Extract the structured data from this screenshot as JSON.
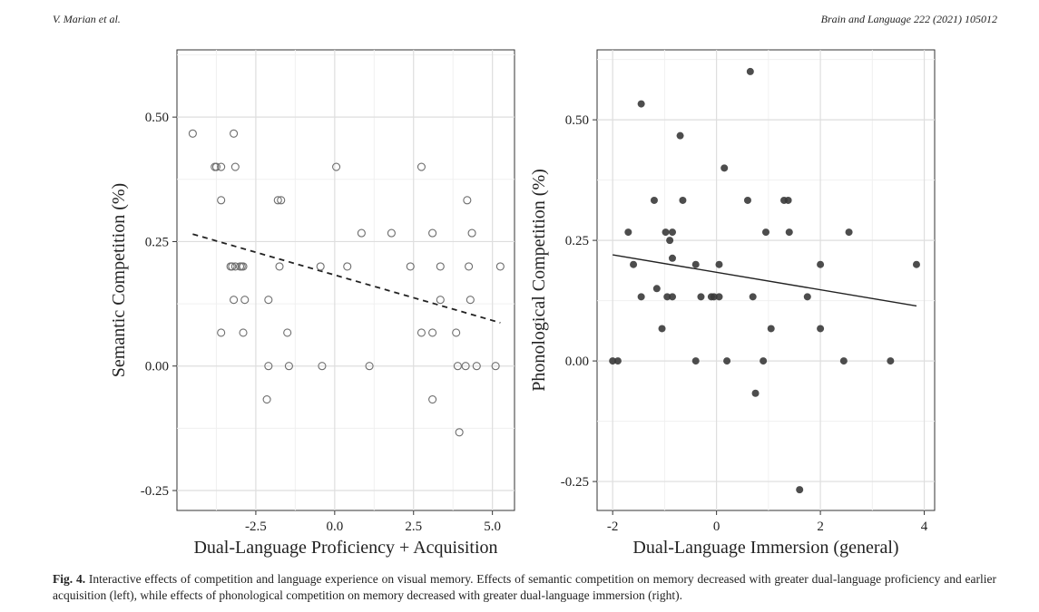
{
  "header": {
    "left": "V. Marian et al.",
    "right": "Brain and Language 222 (2021) 105012"
  },
  "caption": {
    "label": "Fig. 4.",
    "text": "Interactive effects of competition and language experience on visual memory. Effects of semantic competition on memory decreased with greater dual-language proficiency and earlier acquisition (left), while effects of phonological competition on memory decreased with greater dual-language immersion (right)."
  },
  "chart_data": [
    {
      "type": "scatter",
      "title": "",
      "xlabel": "Dual-Language Proficiency + Acquisition",
      "ylabel": "Semantic Competition (%)",
      "xlim": [
        -5,
        5.7
      ],
      "ylim": [
        -0.29,
        0.635
      ],
      "xticks": [
        -2.5,
        0.0,
        2.5,
        5.0
      ],
      "xtick_labels": [
        "-2.5",
        "0.0",
        "2.5",
        "5.0"
      ],
      "yticks": [
        -0.25,
        0.0,
        0.25,
        0.5
      ],
      "ytick_labels": [
        "-0.25",
        "0.00",
        "0.25",
        "0.50"
      ],
      "grid": true,
      "marker": "open-circle",
      "marker_color": "#6e6e6e",
      "points": [
        {
          "x": -4.5,
          "y": 0.467
        },
        {
          "x": -3.2,
          "y": 0.467
        },
        {
          "x": -3.8,
          "y": 0.4
        },
        {
          "x": -3.75,
          "y": 0.4
        },
        {
          "x": -3.6,
          "y": 0.4
        },
        {
          "x": -3.15,
          "y": 0.4
        },
        {
          "x": 0.05,
          "y": 0.4
        },
        {
          "x": 2.75,
          "y": 0.4
        },
        {
          "x": -3.6,
          "y": 0.333
        },
        {
          "x": -1.8,
          "y": 0.333
        },
        {
          "x": -1.7,
          "y": 0.333
        },
        {
          "x": 4.2,
          "y": 0.333
        },
        {
          "x": 0.85,
          "y": 0.267
        },
        {
          "x": 1.8,
          "y": 0.267
        },
        {
          "x": 3.1,
          "y": 0.267
        },
        {
          "x": 4.35,
          "y": 0.267
        },
        {
          "x": -3.3,
          "y": 0.2
        },
        {
          "x": -3.25,
          "y": 0.2
        },
        {
          "x": -3.15,
          "y": 0.2
        },
        {
          "x": -3.0,
          "y": 0.2
        },
        {
          "x": -2.95,
          "y": 0.2
        },
        {
          "x": -2.9,
          "y": 0.2
        },
        {
          "x": -1.75,
          "y": 0.2
        },
        {
          "x": -0.45,
          "y": 0.2
        },
        {
          "x": 0.4,
          "y": 0.2
        },
        {
          "x": 2.4,
          "y": 0.2
        },
        {
          "x": 3.35,
          "y": 0.2
        },
        {
          "x": 4.25,
          "y": 0.2
        },
        {
          "x": 5.25,
          "y": 0.2
        },
        {
          "x": -3.2,
          "y": 0.133
        },
        {
          "x": -2.85,
          "y": 0.133
        },
        {
          "x": -2.1,
          "y": 0.133
        },
        {
          "x": 3.35,
          "y": 0.133
        },
        {
          "x": 4.3,
          "y": 0.133
        },
        {
          "x": -3.6,
          "y": 0.067
        },
        {
          "x": -2.9,
          "y": 0.067
        },
        {
          "x": -1.5,
          "y": 0.067
        },
        {
          "x": 2.75,
          "y": 0.067
        },
        {
          "x": 3.1,
          "y": 0.067
        },
        {
          "x": 3.85,
          "y": 0.067
        },
        {
          "x": -2.1,
          "y": 0.0
        },
        {
          "x": -1.45,
          "y": 0.0
        },
        {
          "x": -0.4,
          "y": 0.0
        },
        {
          "x": 1.1,
          "y": 0.0
        },
        {
          "x": 3.9,
          "y": 0.0
        },
        {
          "x": 4.15,
          "y": 0.0
        },
        {
          "x": 4.5,
          "y": 0.0
        },
        {
          "x": 5.1,
          "y": 0.0
        },
        {
          "x": -2.15,
          "y": -0.067
        },
        {
          "x": 3.1,
          "y": -0.067
        },
        {
          "x": 3.95,
          "y": -0.133
        }
      ],
      "trend_line": {
        "style": "dashed",
        "x": [
          -4.5,
          5.25
        ],
        "y": [
          0.265,
          0.087
        ]
      }
    },
    {
      "type": "scatter",
      "title": "",
      "xlabel": "Dual-Language Immersion (general)",
      "ylabel": "Phonological Competition (%)",
      "xlim": [
        -2.3,
        4.2
      ],
      "ylim": [
        -0.31,
        0.645
      ],
      "xticks": [
        -2,
        0,
        2,
        4
      ],
      "xtick_labels": [
        "-2",
        "0",
        "2",
        "4"
      ],
      "yticks": [
        -0.25,
        0.0,
        0.25,
        0.5
      ],
      "ytick_labels": [
        "-0.25",
        "0.00",
        "0.25",
        "0.50"
      ],
      "grid": true,
      "marker": "filled-circle",
      "marker_color": "#3a3a3a",
      "points": [
        {
          "x": 0.65,
          "y": 0.6
        },
        {
          "x": -1.45,
          "y": 0.533
        },
        {
          "x": -0.7,
          "y": 0.467
        },
        {
          "x": 0.15,
          "y": 0.4
        },
        {
          "x": -1.2,
          "y": 0.333
        },
        {
          "x": -0.65,
          "y": 0.333
        },
        {
          "x": 0.6,
          "y": 0.333
        },
        {
          "x": 1.3,
          "y": 0.333
        },
        {
          "x": 1.38,
          "y": 0.333
        },
        {
          "x": -1.7,
          "y": 0.267
        },
        {
          "x": -0.98,
          "y": 0.267
        },
        {
          "x": -0.85,
          "y": 0.267
        },
        {
          "x": 0.95,
          "y": 0.267
        },
        {
          "x": 1.4,
          "y": 0.267
        },
        {
          "x": 2.55,
          "y": 0.267
        },
        {
          "x": -0.9,
          "y": 0.25
        },
        {
          "x": -0.85,
          "y": 0.213
        },
        {
          "x": -1.6,
          "y": 0.2
        },
        {
          "x": -0.4,
          "y": 0.2
        },
        {
          "x": 0.05,
          "y": 0.2
        },
        {
          "x": 2.0,
          "y": 0.2
        },
        {
          "x": 3.85,
          "y": 0.2
        },
        {
          "x": -1.15,
          "y": 0.15
        },
        {
          "x": -1.45,
          "y": 0.133
        },
        {
          "x": -0.95,
          "y": 0.133
        },
        {
          "x": -0.85,
          "y": 0.133
        },
        {
          "x": -0.3,
          "y": 0.133
        },
        {
          "x": -0.1,
          "y": 0.133
        },
        {
          "x": -0.05,
          "y": 0.133
        },
        {
          "x": 0.05,
          "y": 0.133
        },
        {
          "x": 0.7,
          "y": 0.133
        },
        {
          "x": 1.75,
          "y": 0.133
        },
        {
          "x": -1.05,
          "y": 0.067
        },
        {
          "x": 1.05,
          "y": 0.067
        },
        {
          "x": 2.0,
          "y": 0.067
        },
        {
          "x": -2.0,
          "y": 0.0
        },
        {
          "x": -1.9,
          "y": 0.0
        },
        {
          "x": -0.4,
          "y": 0.0
        },
        {
          "x": 0.2,
          "y": 0.0
        },
        {
          "x": 0.9,
          "y": 0.0
        },
        {
          "x": 2.45,
          "y": 0.0
        },
        {
          "x": 3.35,
          "y": 0.0
        },
        {
          "x": 0.75,
          "y": -0.067
        },
        {
          "x": 1.6,
          "y": -0.267
        }
      ],
      "trend_line": {
        "style": "solid",
        "x": [
          -2.0,
          3.85
        ],
        "y": [
          0.22,
          0.114
        ]
      }
    }
  ]
}
